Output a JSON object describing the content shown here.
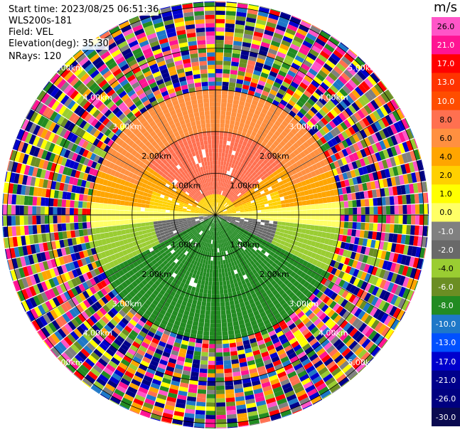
{
  "info": {
    "start_time": "Start time: 2023/08/25 06:51:36",
    "instrument": "WLS200s-181",
    "field": "Field: VEL",
    "elevation": "Elevation(deg): 35.30",
    "nrays": "NRays: 120"
  },
  "colorbar": {
    "unit": "m/s",
    "ticks": [
      "26.0",
      "21.0",
      "17.0",
      "13.0",
      "10.0",
      "8.0",
      "6.0",
      "4.0",
      "2.0",
      "1.0",
      "0.0",
      "-1.0",
      "-2.0",
      "-4.0",
      "-6.0",
      "-8.0",
      "-10.0",
      "-13.0",
      "-17.0",
      "-21.0",
      "-26.0",
      "-30.0"
    ],
    "colors": [
      "#ff55c8",
      "#ff1493",
      "#ff0000",
      "#ff3300",
      "#ff4d00",
      "#ff7050",
      "#ff9040",
      "#ffa500",
      "#ffd000",
      "#ffff00",
      "#ffff66",
      "#808080",
      "#696969",
      "#9acd32",
      "#6b8e23",
      "#228b22",
      "#1e78c8",
      "#0050ff",
      "#0000cd",
      "#00008b",
      "#000080",
      "#0a0a50"
    ]
  },
  "chart_data": {
    "type": "heatmap",
    "plot_kind": "PPI radial velocity scan",
    "field": "VEL",
    "units": "m/s",
    "elevation_deg": 35.3,
    "n_rays": 120,
    "range_rings": [
      "1.00km",
      "2.00km",
      "3.00km",
      "4.00km",
      "5.00km"
    ],
    "range_rings_km": [
      1,
      2,
      3,
      4,
      5
    ],
    "color_range": [
      -30,
      26
    ],
    "description_of_field": {
      "north_sector_0_2km": 8,
      "north_sector_2_3km": 6,
      "near_center_north": 2,
      "east_west_band": 0,
      "south_near": -2,
      "southwest_mid": -4,
      "south_sector": -8,
      "beyond_3km": "noise"
    }
  }
}
